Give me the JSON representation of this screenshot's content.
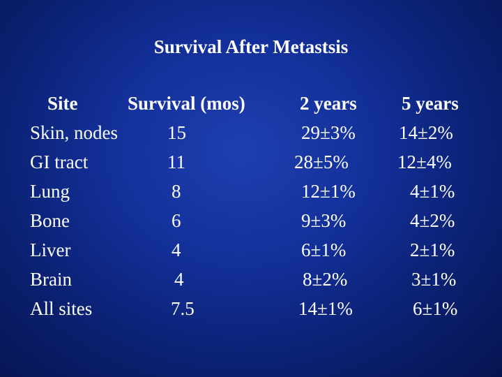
{
  "slide": {
    "title": "Survival After Metastsis",
    "headers": {
      "site": "Site",
      "survival": "Survival (mos)",
      "two_years": "2 years",
      "five_years": "5 years"
    },
    "rows": [
      {
        "site": "Skin, nodes",
        "survival": "15",
        "two_years": "29±3%",
        "five_years": "14±2%"
      },
      {
        "site": "GI tract",
        "survival": "11",
        "two_years": "28±5%",
        "five_years": "12±4%"
      },
      {
        "site": "Lung",
        "survival": "8",
        "two_years": "12±1%",
        "five_years": "4±1%"
      },
      {
        "site": "Bone",
        "survival": "6",
        "two_years": "9±3%",
        "five_years": "4±2%"
      },
      {
        "site": "Liver",
        "survival": "4",
        "two_years": "6±1%",
        "five_years": "2±1%"
      },
      {
        "site": "Brain",
        "survival": "4",
        "two_years": "8±2%",
        "five_years": "3±1%"
      },
      {
        "site": "All sites",
        "survival": "7.5",
        "two_years": "14±1%",
        "five_years": "6±1%"
      }
    ]
  }
}
